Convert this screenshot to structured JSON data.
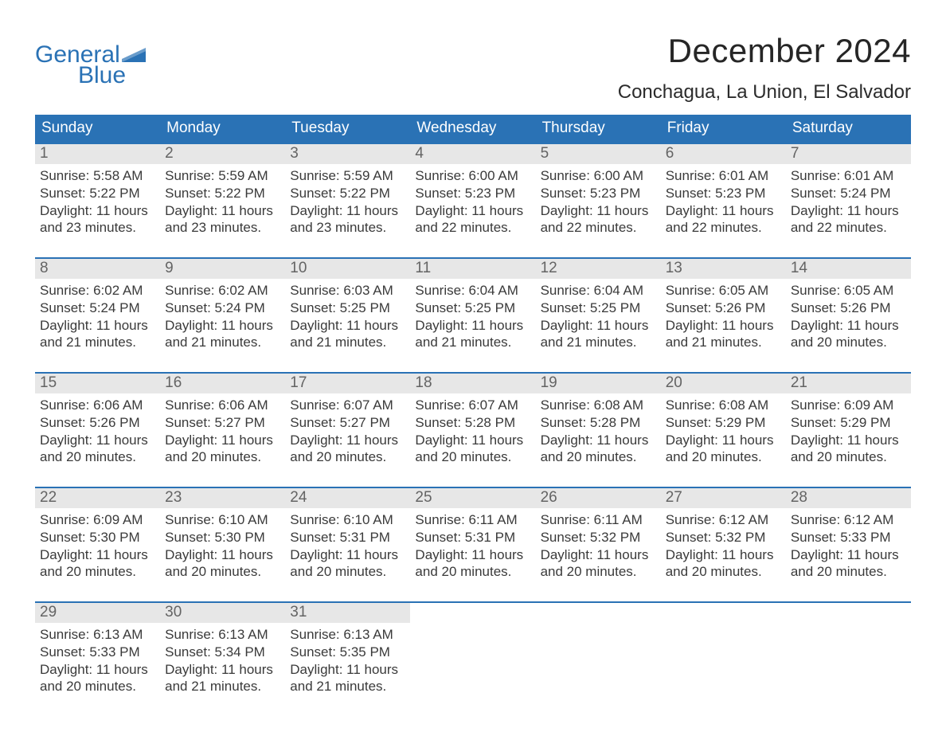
{
  "brand": {
    "line1": "General",
    "line2": "Blue",
    "text_color": "#2a72b5",
    "flag_color": "#2a72b5"
  },
  "title": {
    "month_year": "December 2024",
    "location": "Conchagua, La Union, El Salvador",
    "title_fontsize": 42,
    "location_fontsize": 24,
    "title_color": "#262626"
  },
  "calendar": {
    "header_bg": "#2a72b5",
    "header_text_color": "#ffffff",
    "row_divider_color": "#2a72b5",
    "daynum_band_bg": "#e7e7e7",
    "daynum_color": "#646464",
    "body_text_color": "#3a3a3a",
    "body_fontsize": 17,
    "days_of_week": [
      "Sunday",
      "Monday",
      "Tuesday",
      "Wednesday",
      "Thursday",
      "Friday",
      "Saturday"
    ],
    "weeks": [
      [
        {
          "n": "1",
          "sunrise": "Sunrise: 5:58 AM",
          "sunset": "Sunset: 5:22 PM",
          "day1": "Daylight: 11 hours",
          "day2": "and 23 minutes."
        },
        {
          "n": "2",
          "sunrise": "Sunrise: 5:59 AM",
          "sunset": "Sunset: 5:22 PM",
          "day1": "Daylight: 11 hours",
          "day2": "and 23 minutes."
        },
        {
          "n": "3",
          "sunrise": "Sunrise: 5:59 AM",
          "sunset": "Sunset: 5:22 PM",
          "day1": "Daylight: 11 hours",
          "day2": "and 23 minutes."
        },
        {
          "n": "4",
          "sunrise": "Sunrise: 6:00 AM",
          "sunset": "Sunset: 5:23 PM",
          "day1": "Daylight: 11 hours",
          "day2": "and 22 minutes."
        },
        {
          "n": "5",
          "sunrise": "Sunrise: 6:00 AM",
          "sunset": "Sunset: 5:23 PM",
          "day1": "Daylight: 11 hours",
          "day2": "and 22 minutes."
        },
        {
          "n": "6",
          "sunrise": "Sunrise: 6:01 AM",
          "sunset": "Sunset: 5:23 PM",
          "day1": "Daylight: 11 hours",
          "day2": "and 22 minutes."
        },
        {
          "n": "7",
          "sunrise": "Sunrise: 6:01 AM",
          "sunset": "Sunset: 5:24 PM",
          "day1": "Daylight: 11 hours",
          "day2": "and 22 minutes."
        }
      ],
      [
        {
          "n": "8",
          "sunrise": "Sunrise: 6:02 AM",
          "sunset": "Sunset: 5:24 PM",
          "day1": "Daylight: 11 hours",
          "day2": "and 21 minutes."
        },
        {
          "n": "9",
          "sunrise": "Sunrise: 6:02 AM",
          "sunset": "Sunset: 5:24 PM",
          "day1": "Daylight: 11 hours",
          "day2": "and 21 minutes."
        },
        {
          "n": "10",
          "sunrise": "Sunrise: 6:03 AM",
          "sunset": "Sunset: 5:25 PM",
          "day1": "Daylight: 11 hours",
          "day2": "and 21 minutes."
        },
        {
          "n": "11",
          "sunrise": "Sunrise: 6:04 AM",
          "sunset": "Sunset: 5:25 PM",
          "day1": "Daylight: 11 hours",
          "day2": "and 21 minutes."
        },
        {
          "n": "12",
          "sunrise": "Sunrise: 6:04 AM",
          "sunset": "Sunset: 5:25 PM",
          "day1": "Daylight: 11 hours",
          "day2": "and 21 minutes."
        },
        {
          "n": "13",
          "sunrise": "Sunrise: 6:05 AM",
          "sunset": "Sunset: 5:26 PM",
          "day1": "Daylight: 11 hours",
          "day2": "and 21 minutes."
        },
        {
          "n": "14",
          "sunrise": "Sunrise: 6:05 AM",
          "sunset": "Sunset: 5:26 PM",
          "day1": "Daylight: 11 hours",
          "day2": "and 20 minutes."
        }
      ],
      [
        {
          "n": "15",
          "sunrise": "Sunrise: 6:06 AM",
          "sunset": "Sunset: 5:26 PM",
          "day1": "Daylight: 11 hours",
          "day2": "and 20 minutes."
        },
        {
          "n": "16",
          "sunrise": "Sunrise: 6:06 AM",
          "sunset": "Sunset: 5:27 PM",
          "day1": "Daylight: 11 hours",
          "day2": "and 20 minutes."
        },
        {
          "n": "17",
          "sunrise": "Sunrise: 6:07 AM",
          "sunset": "Sunset: 5:27 PM",
          "day1": "Daylight: 11 hours",
          "day2": "and 20 minutes."
        },
        {
          "n": "18",
          "sunrise": "Sunrise: 6:07 AM",
          "sunset": "Sunset: 5:28 PM",
          "day1": "Daylight: 11 hours",
          "day2": "and 20 minutes."
        },
        {
          "n": "19",
          "sunrise": "Sunrise: 6:08 AM",
          "sunset": "Sunset: 5:28 PM",
          "day1": "Daylight: 11 hours",
          "day2": "and 20 minutes."
        },
        {
          "n": "20",
          "sunrise": "Sunrise: 6:08 AM",
          "sunset": "Sunset: 5:29 PM",
          "day1": "Daylight: 11 hours",
          "day2": "and 20 minutes."
        },
        {
          "n": "21",
          "sunrise": "Sunrise: 6:09 AM",
          "sunset": "Sunset: 5:29 PM",
          "day1": "Daylight: 11 hours",
          "day2": "and 20 minutes."
        }
      ],
      [
        {
          "n": "22",
          "sunrise": "Sunrise: 6:09 AM",
          "sunset": "Sunset: 5:30 PM",
          "day1": "Daylight: 11 hours",
          "day2": "and 20 minutes."
        },
        {
          "n": "23",
          "sunrise": "Sunrise: 6:10 AM",
          "sunset": "Sunset: 5:30 PM",
          "day1": "Daylight: 11 hours",
          "day2": "and 20 minutes."
        },
        {
          "n": "24",
          "sunrise": "Sunrise: 6:10 AM",
          "sunset": "Sunset: 5:31 PM",
          "day1": "Daylight: 11 hours",
          "day2": "and 20 minutes."
        },
        {
          "n": "25",
          "sunrise": "Sunrise: 6:11 AM",
          "sunset": "Sunset: 5:31 PM",
          "day1": "Daylight: 11 hours",
          "day2": "and 20 minutes."
        },
        {
          "n": "26",
          "sunrise": "Sunrise: 6:11 AM",
          "sunset": "Sunset: 5:32 PM",
          "day1": "Daylight: 11 hours",
          "day2": "and 20 minutes."
        },
        {
          "n": "27",
          "sunrise": "Sunrise: 6:12 AM",
          "sunset": "Sunset: 5:32 PM",
          "day1": "Daylight: 11 hours",
          "day2": "and 20 minutes."
        },
        {
          "n": "28",
          "sunrise": "Sunrise: 6:12 AM",
          "sunset": "Sunset: 5:33 PM",
          "day1": "Daylight: 11 hours",
          "day2": "and 20 minutes."
        }
      ],
      [
        {
          "n": "29",
          "sunrise": "Sunrise: 6:13 AM",
          "sunset": "Sunset: 5:33 PM",
          "day1": "Daylight: 11 hours",
          "day2": "and 20 minutes."
        },
        {
          "n": "30",
          "sunrise": "Sunrise: 6:13 AM",
          "sunset": "Sunset: 5:34 PM",
          "day1": "Daylight: 11 hours",
          "day2": "and 21 minutes."
        },
        {
          "n": "31",
          "sunrise": "Sunrise: 6:13 AM",
          "sunset": "Sunset: 5:35 PM",
          "day1": "Daylight: 11 hours",
          "day2": "and 21 minutes."
        },
        null,
        null,
        null,
        null
      ]
    ]
  }
}
